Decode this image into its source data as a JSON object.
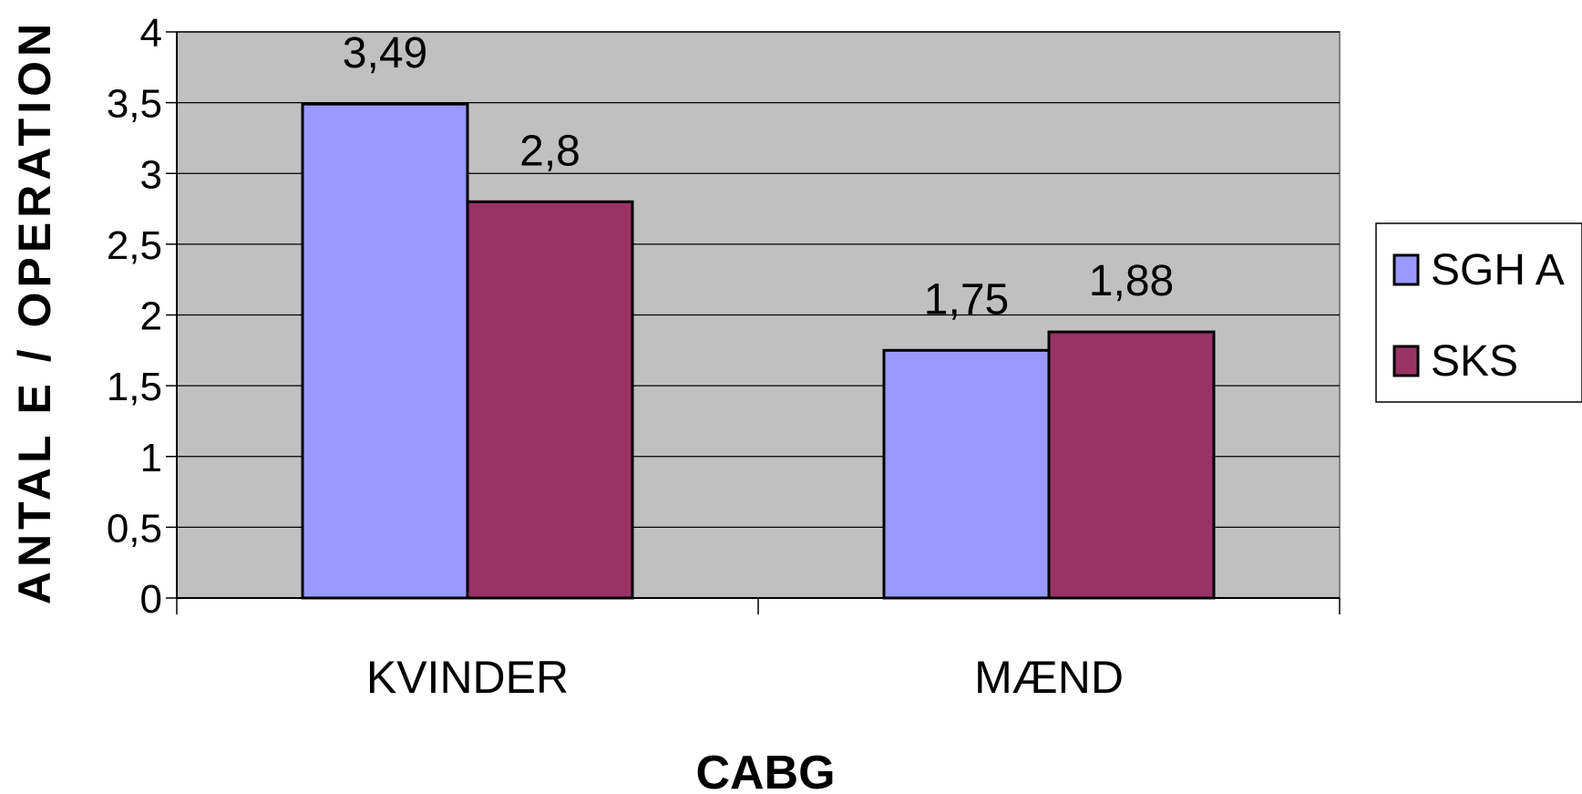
{
  "chart_data": {
    "type": "bar",
    "categories": [
      "KVINDER",
      "MÆND"
    ],
    "series": [
      {
        "name": "SGH A",
        "values": [
          3.49,
          1.75
        ],
        "labels": [
          "3,49",
          "1,75"
        ],
        "color": "#9999FF"
      },
      {
        "name": "SKS",
        "values": [
          2.8,
          1.88
        ],
        "labels": [
          "2,8",
          "1,88"
        ],
        "color": "#993366"
      }
    ],
    "xlabel": "CABG",
    "ylabel": "ANTAL E / OPERATION",
    "ylim": [
      0,
      4
    ],
    "yticks": [
      0,
      0.5,
      1,
      1.5,
      2,
      2.5,
      3,
      3.5,
      4
    ],
    "ytick_labels": [
      "0",
      "0,5",
      "1",
      "1,5",
      "2",
      "2,5",
      "3",
      "3,5",
      "4"
    ],
    "plot_background": "#C0C0C0",
    "grid": true,
    "legend_position": "right"
  }
}
